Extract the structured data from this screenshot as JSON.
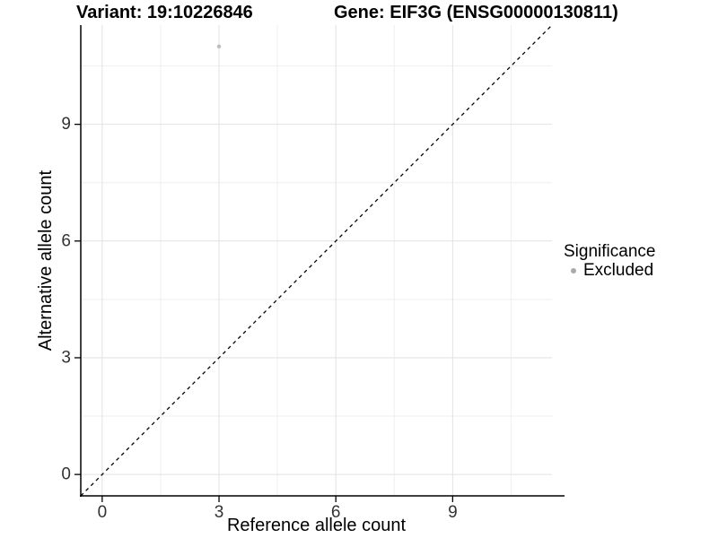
{
  "header": {
    "variant_title": "Variant: 19:10226846",
    "gene_title": "Gene: EIF3G (ENSG00000130811)"
  },
  "chart_data": {
    "type": "scatter",
    "xlabel": "Reference allele count",
    "ylabel": "Alternative allele count",
    "xlim": [
      -0.55,
      11.55
    ],
    "ylim": [
      -0.55,
      11.55
    ],
    "x_ticks": [
      0,
      3,
      6,
      9
    ],
    "y_ticks": [
      0,
      3,
      6,
      9
    ],
    "minor_ticks": [
      1.5,
      4.5,
      7.5,
      10.5
    ],
    "grid": "major-and-minor",
    "identity_line": {
      "style": "dashed",
      "color": "#000000"
    },
    "points": [
      {
        "x": 3,
        "y": 11,
        "significance": "Excluded",
        "color": "#bdbdbd"
      }
    ],
    "legend": {
      "title": "Significance",
      "position": "right",
      "items": [
        {
          "label": "Excluded",
          "color": "#aaaaaa"
        }
      ]
    }
  },
  "colors": {
    "background": "#ffffff",
    "major_grid": "#e2e2e2",
    "minor_grid": "#efefef",
    "axis_line": "#000000",
    "tick_label": "#333333",
    "point": "#bdbdbd"
  }
}
